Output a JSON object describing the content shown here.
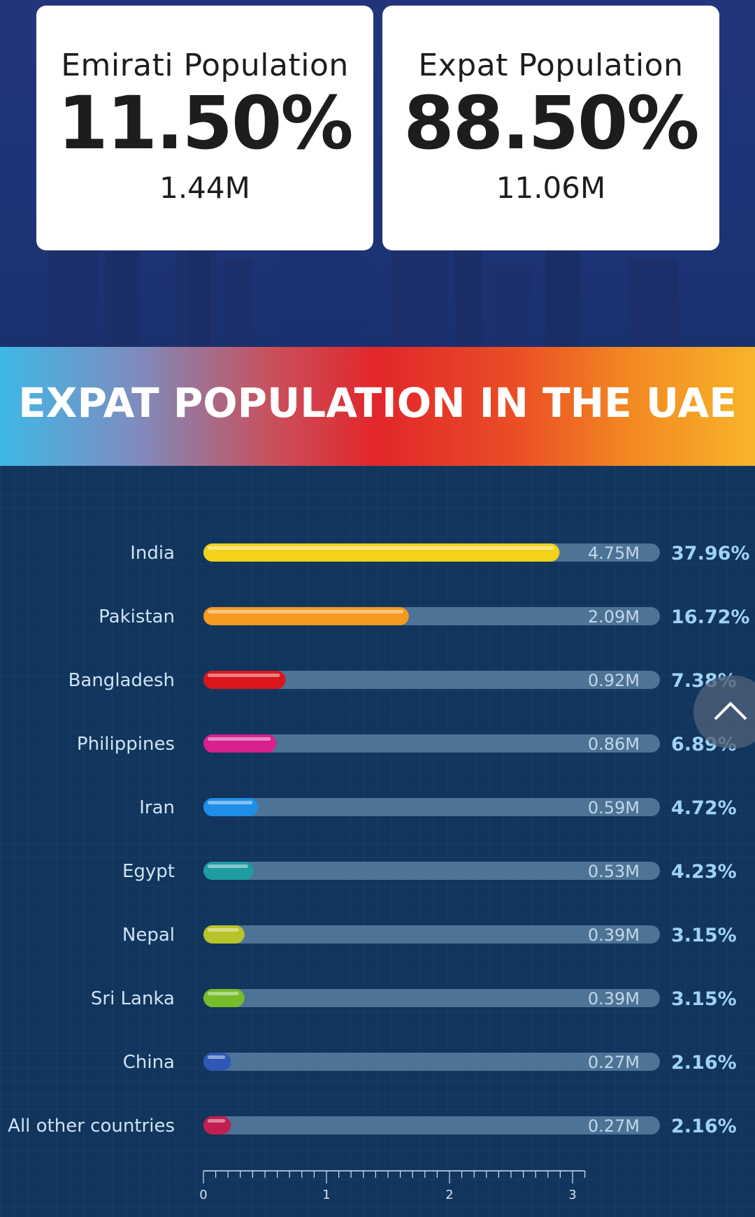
{
  "summary": {
    "emirati": {
      "title": "Emirati Population",
      "percent": "11.50%",
      "count": "1.44M"
    },
    "expat": {
      "title": "Expat Population",
      "percent": "88.50%",
      "count": "11.06M"
    }
  },
  "banner": {
    "title": "EXPAT POPULATION IN THE UAE"
  },
  "chart_data": {
    "type": "bar",
    "orientation": "horizontal",
    "title": "EXPAT POPULATION IN THE UAE",
    "xlabel": "",
    "ylabel": "",
    "xlim": [
      0,
      3.1
    ],
    "x_ticks": [
      "0",
      "1",
      "2",
      "3"
    ],
    "x_tick_values": [
      0,
      1,
      2,
      3
    ],
    "categories": [
      "India",
      "Pakistan",
      "Bangladesh",
      "Philippines",
      "Iran",
      "Egypt",
      "Nepal",
      "Sri Lanka",
      "China",
      "All other countries"
    ],
    "values": [
      4.75,
      2.09,
      0.92,
      0.86,
      0.59,
      0.53,
      0.39,
      0.39,
      0.27,
      0.27
    ],
    "value_labels": [
      "4.75M",
      "2.09M",
      "0.92M",
      "0.86M",
      "0.59M",
      "0.53M",
      "0.39M",
      "0.39M",
      "0.27M",
      "0.27M"
    ],
    "percent_labels": [
      "37.96%",
      "16.72%",
      "7.38%",
      "6.89%",
      "4.72%",
      "4.23%",
      "3.15%",
      "3.15%",
      "2.16%",
      "2.16%"
    ],
    "fill_fractions": [
      0.78,
      0.45,
      0.18,
      0.16,
      0.12,
      0.11,
      0.09,
      0.09,
      0.06,
      0.06
    ],
    "colors": [
      "#f2d21a",
      "#f59a1e",
      "#d9161d",
      "#d6218f",
      "#1f8ee6",
      "#1f9c9f",
      "#b8c22a",
      "#76bd2a",
      "#2d58b5",
      "#c21e4f"
    ],
    "track_color": "#4d7396",
    "label_color": "#cfe3f5",
    "percent_color": "#9fd3f2",
    "grid": true
  },
  "scroll_top": {
    "icon": "chevron-up-icon"
  }
}
